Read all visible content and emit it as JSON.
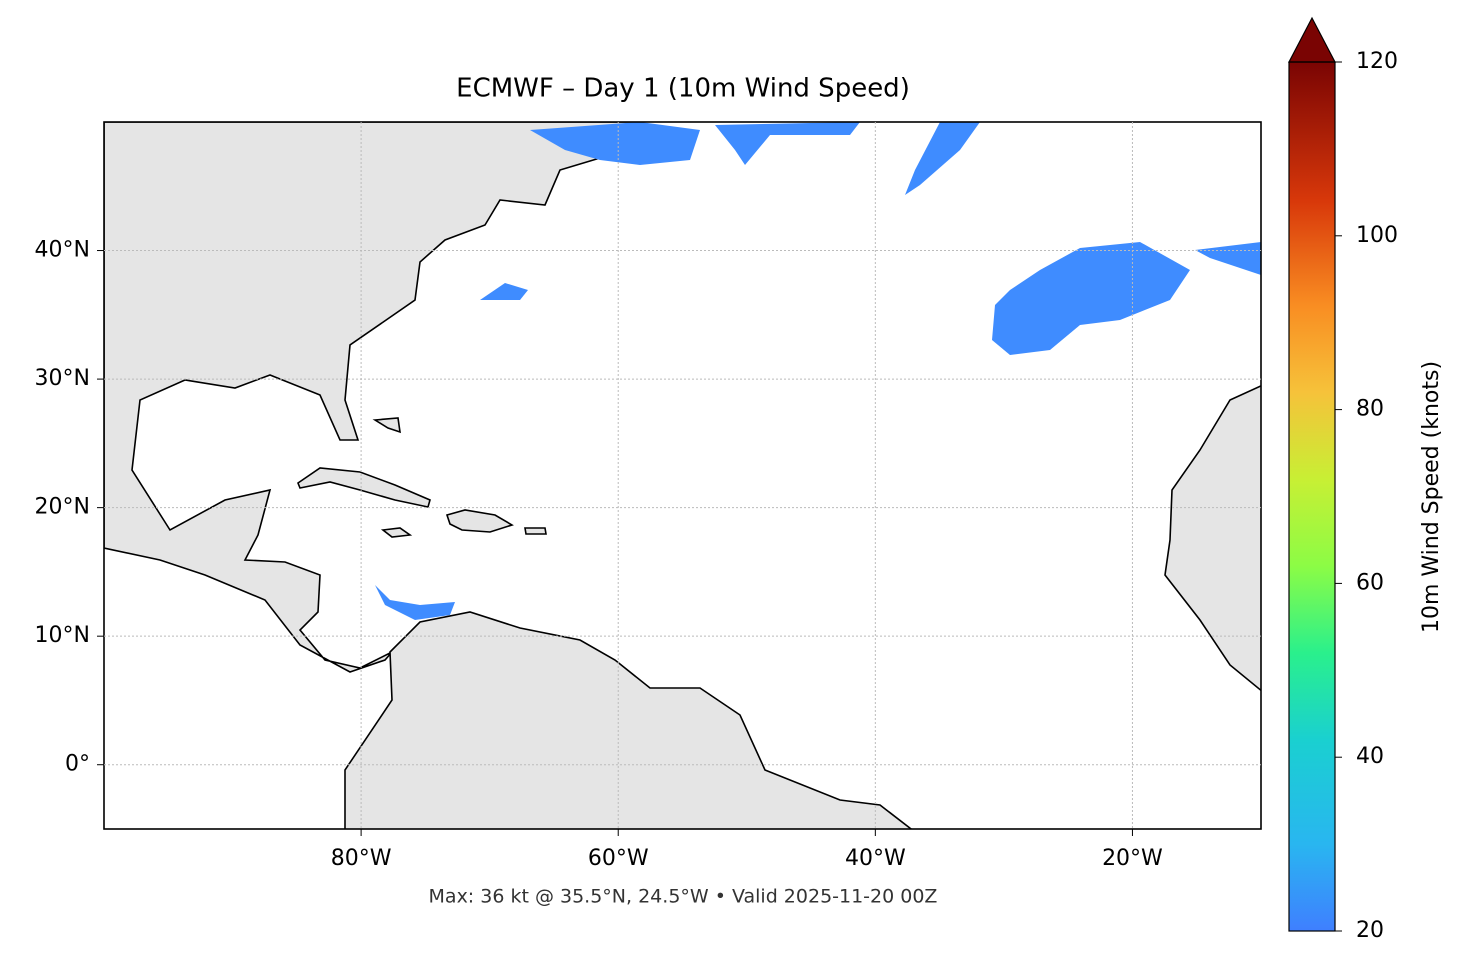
{
  "title": "ECMWF – Day 1 (10m Wind Speed)",
  "xlim": [
    -100,
    -10
  ],
  "ylim": [
    -5,
    50
  ],
  "xticks": [
    {
      "value": -80,
      "label": "80°W"
    },
    {
      "value": -60,
      "label": "60°W"
    },
    {
      "value": -40,
      "label": "40°W"
    },
    {
      "value": -20,
      "label": "20°W"
    }
  ],
  "yticks": [
    {
      "value": 0,
      "label": "0°"
    },
    {
      "value": 10,
      "label": "10°N"
    },
    {
      "value": 20,
      "label": "20°N"
    },
    {
      "value": 30,
      "label": "30°N"
    },
    {
      "value": 40,
      "label": "40°N"
    }
  ],
  "grid": true,
  "footer": "Max: 36 kt @ 35.5°N, 24.5°W • Valid 2025-11-20 00Z",
  "colorbar": {
    "label": "10m Wind Speed (knots)",
    "lim": [
      20,
      120
    ],
    "ticks": [
      20,
      40,
      60,
      80,
      100,
      120
    ]
  }
}
